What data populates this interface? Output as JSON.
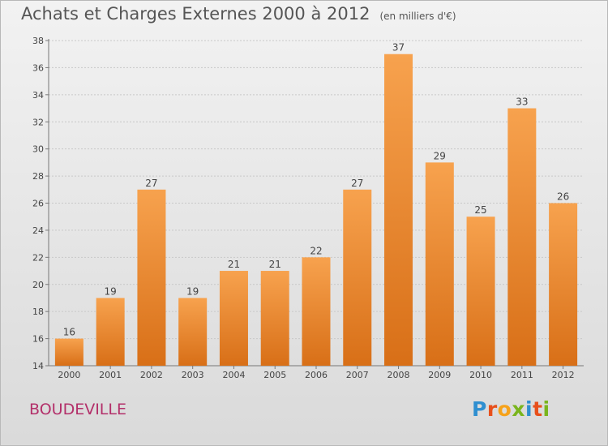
{
  "header": {
    "title": "Achats et Charges Externes 2000 à 2012",
    "unit": "(en milliers d'€)"
  },
  "footer": {
    "commune": "BOUDEVILLE",
    "logo_text": "Proxiti"
  },
  "colors": {
    "bar_light": "#f7a24e",
    "bar_dark": "#d86f17",
    "logo_letters": [
      "#2f8fd0",
      "#e8501c",
      "#f6a21a",
      "#7ab51d",
      "#2f8fd0",
      "#e8501c",
      "#7ab51d"
    ]
  },
  "chart_data": {
    "type": "bar",
    "title": "Achats et Charges Externes 2000 à 2012",
    "subtitle": "(en milliers d'€)",
    "xlabel": "",
    "ylabel": "",
    "categories": [
      "2000",
      "2001",
      "2002",
      "2003",
      "2004",
      "2005",
      "2006",
      "2007",
      "2008",
      "2009",
      "2010",
      "2011",
      "2012"
    ],
    "values": [
      16,
      19,
      27,
      19,
      21,
      21,
      22,
      27,
      37,
      29,
      25,
      33,
      26
    ],
    "ylim": [
      14,
      38
    ],
    "yticks": [
      14,
      16,
      18,
      20,
      22,
      24,
      26,
      28,
      30,
      32,
      34,
      36,
      38
    ],
    "grid": true,
    "data_labels": true,
    "legend": "none"
  }
}
